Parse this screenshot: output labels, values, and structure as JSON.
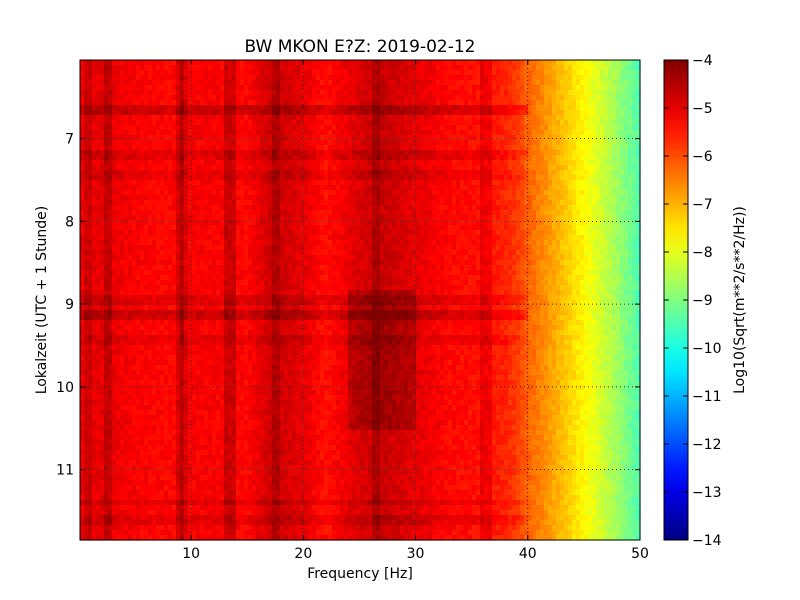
{
  "chart_data": {
    "type": "heatmap",
    "title": "BW MKON E?Z: 2019-02-12",
    "xlabel": "Frequency [Hz]",
    "ylabel": "Lokalzeit (UTC + 1 Stunde)",
    "xlim": [
      0.1,
      50
    ],
    "ylim": [
      11.85,
      6.05
    ],
    "y_inverted": true,
    "x_ticks": [
      10,
      20,
      30,
      40,
      50
    ],
    "x_tick_labels": [
      "10",
      "20",
      "30",
      "40",
      "50"
    ],
    "y_ticks": [
      7,
      8,
      9,
      10,
      11
    ],
    "y_tick_labels": [
      "7",
      "8",
      "9",
      "10",
      "11"
    ],
    "grid": true,
    "colormap": "jet",
    "colorbar": {
      "label": "Log10(Sqrt(m**2/s**2/Hz))",
      "range": [
        -14,
        -4
      ],
      "ticks": [
        -4,
        -5,
        -6,
        -7,
        -8,
        -9,
        -10,
        -11,
        -12,
        -13,
        -14
      ],
      "tick_labels": [
        "−4",
        "−5",
        "−6",
        "−7",
        "−8",
        "−9",
        "−10",
        "−11",
        "−12",
        "−13",
        "−14"
      ]
    },
    "level_by_frequency": {
      "x": [
        0,
        2,
        5,
        8,
        10,
        12,
        15,
        17,
        18,
        20,
        22,
        25,
        27,
        30,
        33,
        36,
        38,
        39,
        40,
        42,
        44,
        46,
        48,
        50
      ],
      "z": [
        -5.1,
        -5.0,
        -5.2,
        -5.3,
        -5.2,
        -5.2,
        -5.3,
        -4.8,
        -4.8,
        -5.0,
        -5.4,
        -4.9,
        -4.7,
        -5.0,
        -5.3,
        -5.4,
        -5.6,
        -5.8,
        -6.2,
        -6.8,
        -7.4,
        -8.0,
        -8.7,
        -9.5
      ]
    },
    "horizontal_features": [
      {
        "time": 6.67,
        "delta": 0.45
      },
      {
        "time": 7.2,
        "delta": 0.25
      },
      {
        "time": 7.45,
        "delta": 0.2
      },
      {
        "time": 8.95,
        "delta": 0.25
      },
      {
        "time": 9.15,
        "delta": 0.45
      },
      {
        "time": 9.45,
        "delta": 0.2
      },
      {
        "time": 11.4,
        "delta": 0.25
      },
      {
        "time": 11.6,
        "delta": 0.25
      }
    ],
    "vertical_features": [
      {
        "freq": 0.8,
        "delta": 0.3
      },
      {
        "freq": 2.5,
        "delta": 0.4
      },
      {
        "freq": 9.0,
        "delta": 0.4
      },
      {
        "freq": 9.3,
        "delta": 0.3
      },
      {
        "freq": 13.5,
        "delta": 0.5
      },
      {
        "freq": 17.5,
        "delta": 0.3
      },
      {
        "freq": 26.5,
        "delta": 0.3
      },
      {
        "freq": 36.3,
        "delta": 0.3
      }
    ],
    "strong_zone": {
      "freq_range": [
        24,
        30
      ],
      "time_range": [
        8.8,
        10.5
      ],
      "delta": 0.4
    }
  }
}
